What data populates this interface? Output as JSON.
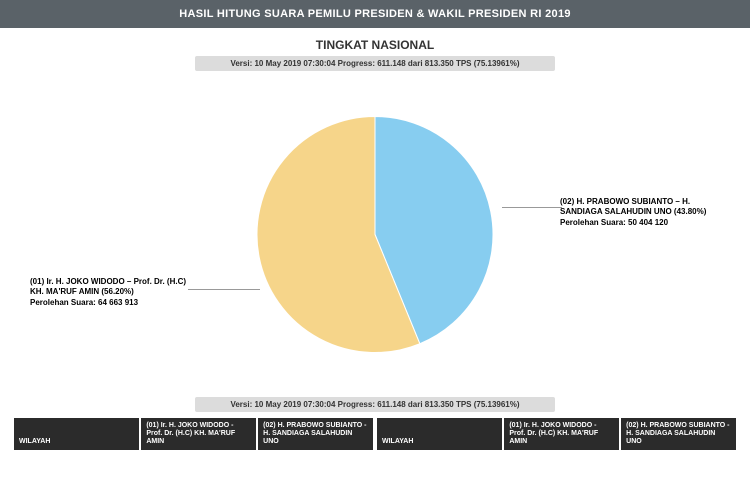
{
  "header": {
    "title": "HASIL HITUNG SUARA PEMILU PRESIDEN & WAKIL PRESIDEN RI 2019"
  },
  "subtitle": "TINGKAT NASIONAL",
  "version_text": "Versi: 10 May 2019 07:30:04 Progress: 611.148 dari 813.350 TPS (75.13961%)",
  "pie": {
    "type": "pie",
    "radius": 118,
    "background": "#ffffff",
    "slices": [
      {
        "label": "(01) Ir. H. JOKO WIDODO – Prof. Dr. (H.C) KH. MA'RUF AMIN (56.20%)",
        "votes_line": "Perolehan Suara: 64 663 913",
        "percent": 56.2,
        "color": "#f6d58a"
      },
      {
        "label": "(02) H. PRABOWO SUBIANTO – H. SANDIAGA SALAHUDIN UNO (43.80%)",
        "votes_line": "Perolehan Suara: 50 404 120",
        "percent": 43.8,
        "color": "#87cdf0"
      }
    ],
    "stroke": "#ffffff",
    "stroke_width": 1
  },
  "table": {
    "col_wilayah": "WILAYAH",
    "col_cand1": "(01) Ir. H. JOKO WIDODO - Prof. Dr. (H.C) KH. MA'RUF AMIN",
    "col_cand2": "(02) H. PRABOWO SUBIANTO - H. SANDIAGA SALAHUDIN UNO"
  }
}
